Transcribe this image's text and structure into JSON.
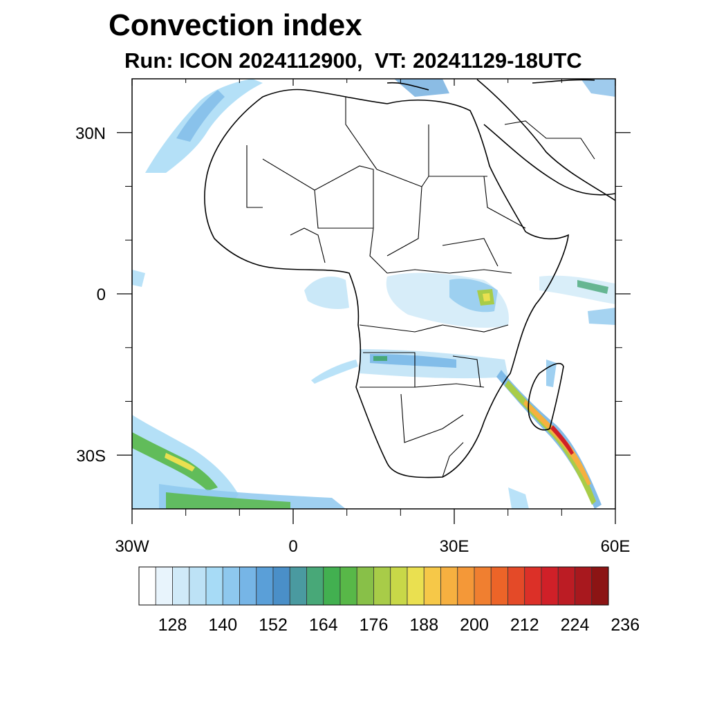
{
  "title": "Convection index",
  "subtitle": "Run: ICON 2024112900,  VT: 20241129-18UTC",
  "map": {
    "projection": "cylindrical-equidistant",
    "lon_range": [
      -30,
      60
    ],
    "lat_range": [
      -40,
      40
    ],
    "lon_tick_labels": [
      {
        "lon": -30,
        "label": "30W"
      },
      {
        "lon": 0,
        "label": "0"
      },
      {
        "lon": 30,
        "label": "30E"
      },
      {
        "lon": 60,
        "label": "60E"
      }
    ],
    "lat_tick_labels": [
      {
        "lat": 30,
        "label": "30N"
      },
      {
        "lat": 0,
        "label": "0"
      },
      {
        "lat": -30,
        "label": "30S"
      }
    ],
    "lon_minor_ticks": [
      -20,
      -10,
      10,
      20,
      40,
      50
    ],
    "lat_minor_ticks": [
      -20,
      -10,
      10,
      20
    ]
  },
  "colorbar": {
    "colors": [
      "#ffffff",
      "#e8f4fc",
      "#d0eaf8",
      "#bde2f6",
      "#a7dbf6",
      "#8ec8ee",
      "#76b5e6",
      "#5a9fd8",
      "#4a8fc8",
      "#4a9aa0",
      "#48a878",
      "#42b050",
      "#58b848",
      "#88c048",
      "#a8cc48",
      "#c8d848",
      "#eae050",
      "#f6c848",
      "#f6b040",
      "#f49838",
      "#f07f30",
      "#ec6428",
      "#e44a28",
      "#dc3028",
      "#d02028",
      "#bc1c24",
      "#a8181e",
      "#8c1414"
    ],
    "labels": [
      "128",
      "140",
      "152",
      "164",
      "176",
      "188",
      "200",
      "212",
      "224",
      "236"
    ]
  }
}
